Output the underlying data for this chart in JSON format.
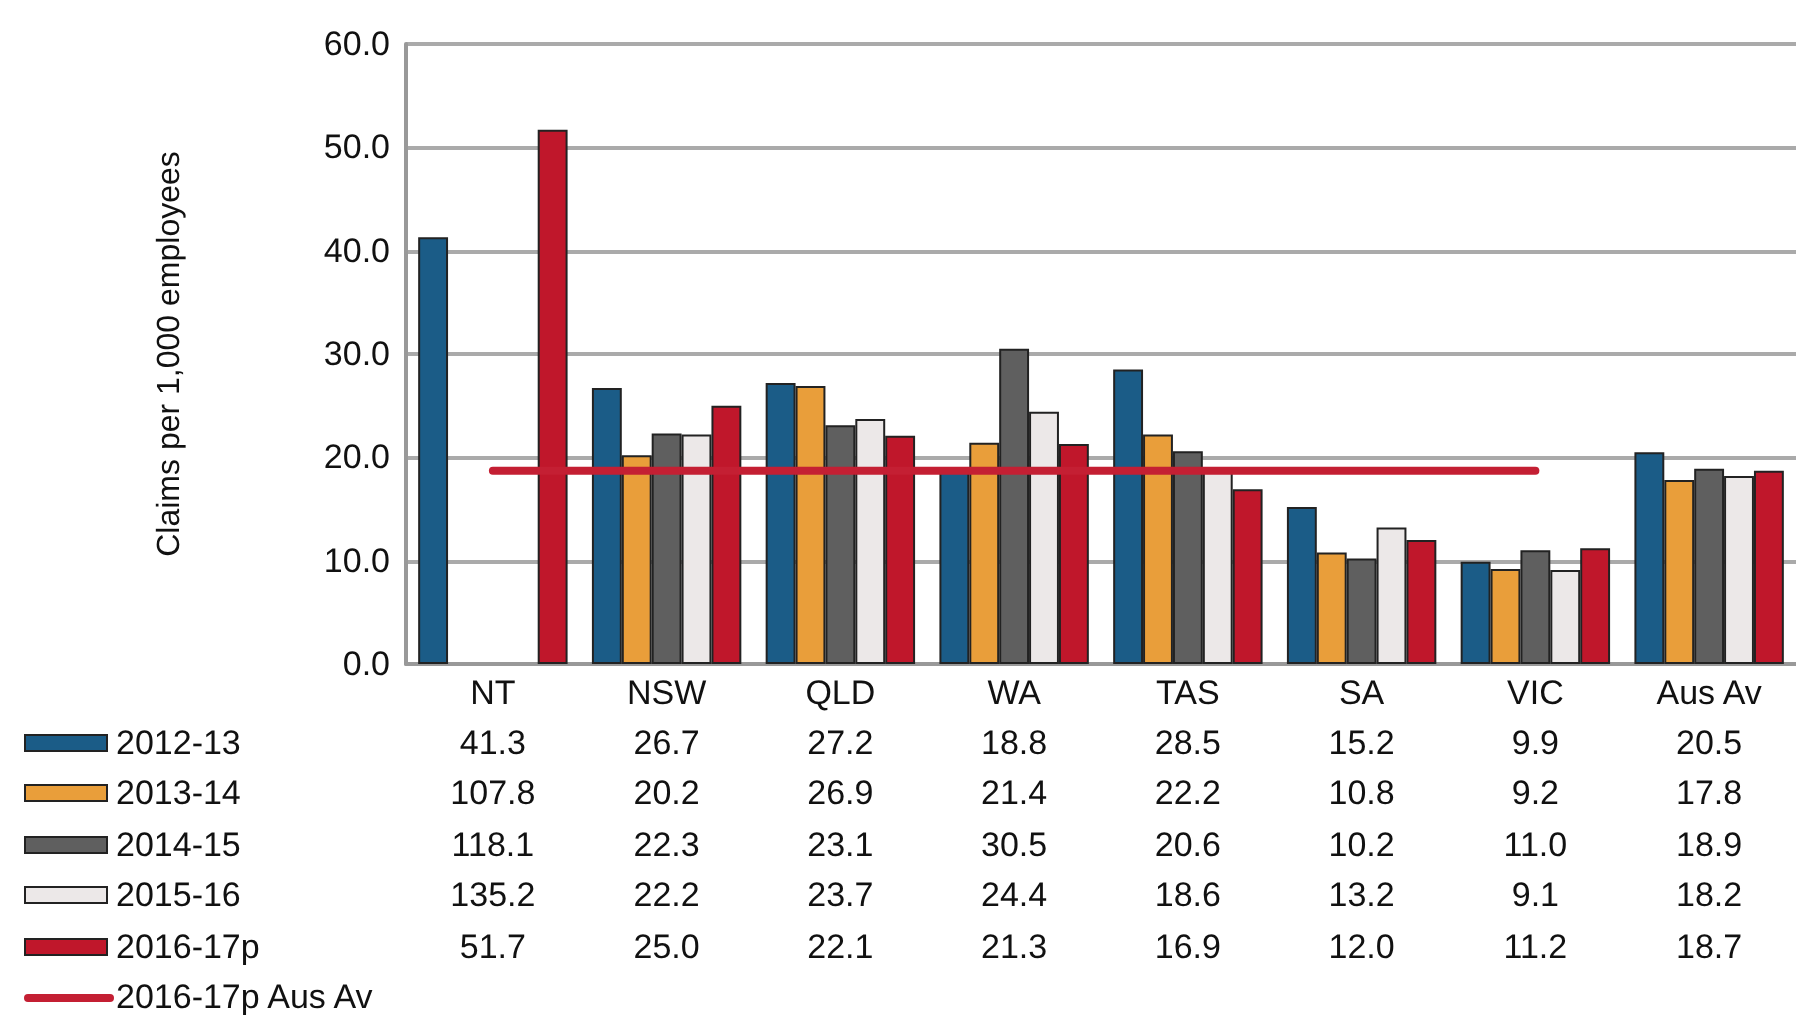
{
  "chart_data": {
    "type": "bar",
    "ylabel": "Claims per 1,000 employees",
    "categories": [
      "NT",
      "NSW",
      "QLD",
      "WA",
      "TAS",
      "SA",
      "VIC",
      "Aus Av"
    ],
    "series": [
      {
        "name": "2012-13",
        "color": "#1b5c87",
        "values": [
          41.3,
          26.7,
          27.2,
          18.8,
          28.5,
          15.2,
          9.9,
          20.5
        ],
        "value_labels": [
          "41.3",
          "26.7",
          "27.2",
          "18.8",
          "28.5",
          "15.2",
          "9.9",
          "20.5"
        ]
      },
      {
        "name": "2013-14",
        "color": "#e99e3a",
        "values": [
          null,
          20.2,
          26.9,
          21.4,
          22.2,
          10.8,
          9.2,
          17.8
        ],
        "value_labels": [
          "107.8",
          "20.2",
          "26.9",
          "21.4",
          "22.2",
          "10.8",
          "9.2",
          "17.8"
        ]
      },
      {
        "name": "2014-15",
        "color": "#5f5f5f",
        "values": [
          null,
          22.3,
          23.1,
          30.5,
          20.6,
          10.2,
          11.0,
          18.9
        ],
        "value_labels": [
          "118.1",
          "22.3",
          "23.1",
          "30.5",
          "20.6",
          "10.2",
          "11.0",
          "18.9"
        ]
      },
      {
        "name": "2015-16",
        "color": "#ece8e8",
        "values": [
          null,
          22.2,
          23.7,
          24.4,
          18.6,
          13.2,
          9.1,
          18.2
        ],
        "value_labels": [
          "135.2",
          "22.2",
          "23.7",
          "24.4",
          "18.6",
          "13.2",
          "9.1",
          "18.2"
        ]
      },
      {
        "name": "2016-17p",
        "color": "#c0172b",
        "values": [
          51.7,
          25.0,
          22.1,
          21.3,
          16.9,
          12.0,
          11.2,
          18.7
        ],
        "value_labels": [
          "51.7",
          "25.0",
          "22.1",
          "21.3",
          "16.9",
          "12.0",
          "11.2",
          "18.7"
        ]
      },
      {
        "name": "2016-17p Aus Av",
        "type": "line",
        "color": "#c41f33",
        "values": [
          18.7,
          18.7,
          18.7,
          18.7,
          18.7,
          18.7,
          18.7,
          null
        ]
      }
    ],
    "ylim": [
      0,
      60
    ],
    "yticks": [
      {
        "value": 0,
        "label": "0.0"
      },
      {
        "value": 10,
        "label": "10.0"
      },
      {
        "value": 20,
        "label": "20.0"
      },
      {
        "value": 30,
        "label": "30.0"
      },
      {
        "value": 40,
        "label": "40.0"
      },
      {
        "value": 50,
        "label": "50.0"
      },
      {
        "value": 60,
        "label": "60.0"
      }
    ],
    "grid": "y",
    "legend": "bottom left",
    "marker": "none"
  }
}
